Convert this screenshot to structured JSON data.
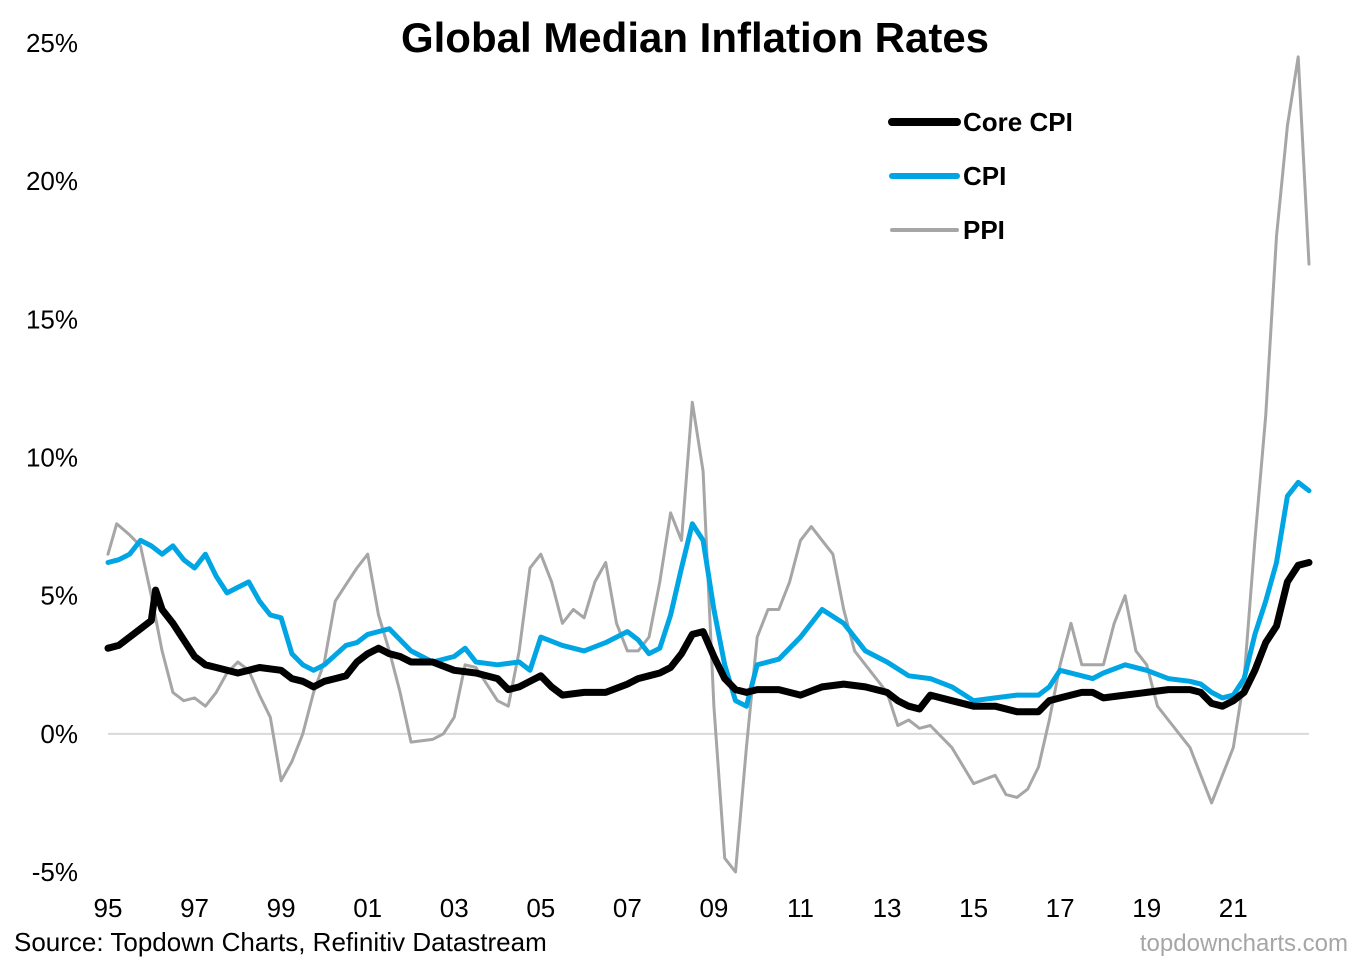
{
  "chart_data": {
    "type": "line",
    "title": "Global Median Inflation Rates",
    "xlabel": "",
    "ylabel": "",
    "x_range": [
      1995,
      2022.75
    ],
    "ylim": [
      -5,
      25
    ],
    "y_ticks": [
      -5,
      0,
      5,
      10,
      15,
      20,
      25
    ],
    "y_tick_labels": [
      "-5%",
      "0%",
      "5%",
      "10%",
      "15%",
      "20%",
      "25%"
    ],
    "x_ticks": [
      1995,
      1997,
      1999,
      2001,
      2003,
      2005,
      2007,
      2009,
      2011,
      2013,
      2015,
      2017,
      2019,
      2021
    ],
    "x_tick_labels": [
      "95",
      "97",
      "99",
      "01",
      "03",
      "05",
      "07",
      "09",
      "11",
      "13",
      "15",
      "17",
      "19",
      "21"
    ],
    "zero_line": true,
    "grid": false,
    "legend_position": "top-right",
    "series": [
      {
        "name": "Core CPI",
        "color": "#000000",
        "width": 7,
        "points": [
          [
            1995.0,
            3.1
          ],
          [
            1995.25,
            3.2
          ],
          [
            1995.5,
            3.5
          ],
          [
            1995.75,
            3.8
          ],
          [
            1996.0,
            4.1
          ],
          [
            1996.1,
            5.2
          ],
          [
            1996.25,
            4.5
          ],
          [
            1996.5,
            4.0
          ],
          [
            1996.75,
            3.4
          ],
          [
            1997.0,
            2.8
          ],
          [
            1997.25,
            2.5
          ],
          [
            1997.5,
            2.4
          ],
          [
            1998.0,
            2.2
          ],
          [
            1998.25,
            2.3
          ],
          [
            1998.5,
            2.4
          ],
          [
            1999.0,
            2.3
          ],
          [
            1999.25,
            2.0
          ],
          [
            1999.5,
            1.9
          ],
          [
            1999.75,
            1.7
          ],
          [
            2000.0,
            1.9
          ],
          [
            2000.25,
            2.0
          ],
          [
            2000.5,
            2.1
          ],
          [
            2000.75,
            2.6
          ],
          [
            2001.0,
            2.9
          ],
          [
            2001.25,
            3.1
          ],
          [
            2001.5,
            2.9
          ],
          [
            2001.75,
            2.8
          ],
          [
            2002.0,
            2.6
          ],
          [
            2002.5,
            2.6
          ],
          [
            2003.0,
            2.3
          ],
          [
            2003.5,
            2.2
          ],
          [
            2004.0,
            2.0
          ],
          [
            2004.25,
            1.6
          ],
          [
            2004.5,
            1.7
          ],
          [
            2004.75,
            1.9
          ],
          [
            2005.0,
            2.1
          ],
          [
            2005.25,
            1.7
          ],
          [
            2005.5,
            1.4
          ],
          [
            2006.0,
            1.5
          ],
          [
            2006.5,
            1.5
          ],
          [
            2007.0,
            1.8
          ],
          [
            2007.25,
            2.0
          ],
          [
            2007.5,
            2.1
          ],
          [
            2007.75,
            2.2
          ],
          [
            2008.0,
            2.4
          ],
          [
            2008.25,
            2.9
          ],
          [
            2008.5,
            3.6
          ],
          [
            2008.75,
            3.7
          ],
          [
            2009.0,
            2.8
          ],
          [
            2009.25,
            2.0
          ],
          [
            2009.5,
            1.6
          ],
          [
            2009.75,
            1.5
          ],
          [
            2010.0,
            1.6
          ],
          [
            2010.5,
            1.6
          ],
          [
            2011.0,
            1.4
          ],
          [
            2011.5,
            1.7
          ],
          [
            2012.0,
            1.8
          ],
          [
            2012.5,
            1.7
          ],
          [
            2013.0,
            1.5
          ],
          [
            2013.25,
            1.2
          ],
          [
            2013.5,
            1.0
          ],
          [
            2013.75,
            0.9
          ],
          [
            2014.0,
            1.4
          ],
          [
            2014.5,
            1.2
          ],
          [
            2015.0,
            1.0
          ],
          [
            2015.5,
            1.0
          ],
          [
            2016.0,
            0.8
          ],
          [
            2016.5,
            0.8
          ],
          [
            2016.75,
            1.2
          ],
          [
            2017.0,
            1.3
          ],
          [
            2017.5,
            1.5
          ],
          [
            2017.75,
            1.5
          ],
          [
            2018.0,
            1.3
          ],
          [
            2018.5,
            1.4
          ],
          [
            2019.0,
            1.5
          ],
          [
            2019.5,
            1.6
          ],
          [
            2020.0,
            1.6
          ],
          [
            2020.25,
            1.5
          ],
          [
            2020.5,
            1.1
          ],
          [
            2020.75,
            1.0
          ],
          [
            2021.0,
            1.2
          ],
          [
            2021.25,
            1.5
          ],
          [
            2021.5,
            2.3
          ],
          [
            2021.75,
            3.3
          ],
          [
            2022.0,
            3.9
          ],
          [
            2022.25,
            5.5
          ],
          [
            2022.5,
            6.1
          ],
          [
            2022.75,
            6.2
          ]
        ]
      },
      {
        "name": "CPI",
        "color": "#00a6e4",
        "width": 5,
        "points": [
          [
            1995.0,
            6.2
          ],
          [
            1995.25,
            6.3
          ],
          [
            1995.5,
            6.5
          ],
          [
            1995.75,
            7.0
          ],
          [
            1996.0,
            6.8
          ],
          [
            1996.25,
            6.5
          ],
          [
            1996.5,
            6.8
          ],
          [
            1996.75,
            6.3
          ],
          [
            1997.0,
            6.0
          ],
          [
            1997.25,
            6.5
          ],
          [
            1997.5,
            5.7
          ],
          [
            1997.75,
            5.1
          ],
          [
            1998.0,
            5.3
          ],
          [
            1998.25,
            5.5
          ],
          [
            1998.5,
            4.8
          ],
          [
            1998.75,
            4.3
          ],
          [
            1999.0,
            4.2
          ],
          [
            1999.25,
            2.9
          ],
          [
            1999.5,
            2.5
          ],
          [
            1999.75,
            2.3
          ],
          [
            2000.0,
            2.5
          ],
          [
            2000.5,
            3.2
          ],
          [
            2000.75,
            3.3
          ],
          [
            2001.0,
            3.6
          ],
          [
            2001.5,
            3.8
          ],
          [
            2002.0,
            3.0
          ],
          [
            2002.5,
            2.6
          ],
          [
            2003.0,
            2.8
          ],
          [
            2003.25,
            3.1
          ],
          [
            2003.5,
            2.6
          ],
          [
            2004.0,
            2.5
          ],
          [
            2004.5,
            2.6
          ],
          [
            2004.75,
            2.3
          ],
          [
            2005.0,
            3.5
          ],
          [
            2005.5,
            3.2
          ],
          [
            2006.0,
            3.0
          ],
          [
            2006.5,
            3.3
          ],
          [
            2007.0,
            3.7
          ],
          [
            2007.25,
            3.4
          ],
          [
            2007.5,
            2.9
          ],
          [
            2007.75,
            3.1
          ],
          [
            2008.0,
            4.3
          ],
          [
            2008.25,
            6.0
          ],
          [
            2008.5,
            7.6
          ],
          [
            2008.75,
            7.0
          ],
          [
            2009.0,
            4.5
          ],
          [
            2009.25,
            2.5
          ],
          [
            2009.5,
            1.2
          ],
          [
            2009.75,
            1.0
          ],
          [
            2010.0,
            2.5
          ],
          [
            2010.5,
            2.7
          ],
          [
            2011.0,
            3.5
          ],
          [
            2011.5,
            4.5
          ],
          [
            2012.0,
            4.0
          ],
          [
            2012.5,
            3.0
          ],
          [
            2013.0,
            2.6
          ],
          [
            2013.5,
            2.1
          ],
          [
            2014.0,
            2.0
          ],
          [
            2014.5,
            1.7
          ],
          [
            2015.0,
            1.2
          ],
          [
            2015.5,
            1.3
          ],
          [
            2016.0,
            1.4
          ],
          [
            2016.5,
            1.4
          ],
          [
            2016.75,
            1.7
          ],
          [
            2017.0,
            2.3
          ],
          [
            2017.5,
            2.1
          ],
          [
            2017.75,
            2.0
          ],
          [
            2018.0,
            2.2
          ],
          [
            2018.5,
            2.5
          ],
          [
            2019.0,
            2.3
          ],
          [
            2019.5,
            2.0
          ],
          [
            2020.0,
            1.9
          ],
          [
            2020.25,
            1.8
          ],
          [
            2020.5,
            1.5
          ],
          [
            2020.75,
            1.3
          ],
          [
            2021.0,
            1.4
          ],
          [
            2021.25,
            2.0
          ],
          [
            2021.5,
            3.6
          ],
          [
            2021.75,
            4.8
          ],
          [
            2022.0,
            6.2
          ],
          [
            2022.25,
            8.6
          ],
          [
            2022.5,
            9.1
          ],
          [
            2022.75,
            8.8
          ]
        ]
      },
      {
        "name": "PPI",
        "color": "#a6a6a6",
        "width": 3,
        "points": [
          [
            1995.0,
            6.5
          ],
          [
            1995.2,
            7.6
          ],
          [
            1995.5,
            7.2
          ],
          [
            1995.75,
            6.8
          ],
          [
            1996.0,
            5.0
          ],
          [
            1996.25,
            3.0
          ],
          [
            1996.5,
            1.5
          ],
          [
            1996.75,
            1.2
          ],
          [
            1997.0,
            1.3
          ],
          [
            1997.25,
            1.0
          ],
          [
            1997.5,
            1.5
          ],
          [
            1997.75,
            2.2
          ],
          [
            1998.0,
            2.6
          ],
          [
            1998.25,
            2.3
          ],
          [
            1998.5,
            1.4
          ],
          [
            1998.75,
            0.6
          ],
          [
            1999.0,
            -1.7
          ],
          [
            1999.25,
            -1.0
          ],
          [
            1999.5,
            0.0
          ],
          [
            1999.75,
            1.5
          ],
          [
            2000.0,
            2.6
          ],
          [
            2000.25,
            4.8
          ],
          [
            2000.5,
            5.4
          ],
          [
            2000.75,
            6.0
          ],
          [
            2001.0,
            6.5
          ],
          [
            2001.25,
            4.3
          ],
          [
            2001.5,
            3.0
          ],
          [
            2001.75,
            1.5
          ],
          [
            2002.0,
            -0.3
          ],
          [
            2002.5,
            -0.2
          ],
          [
            2002.75,
            0.0
          ],
          [
            2003.0,
            0.6
          ],
          [
            2003.25,
            2.5
          ],
          [
            2003.5,
            2.4
          ],
          [
            2003.75,
            1.8
          ],
          [
            2004.0,
            1.2
          ],
          [
            2004.25,
            1.0
          ],
          [
            2004.5,
            3.0
          ],
          [
            2004.75,
            6.0
          ],
          [
            2005.0,
            6.5
          ],
          [
            2005.25,
            5.5
          ],
          [
            2005.5,
            4.0
          ],
          [
            2005.75,
            4.5
          ],
          [
            2006.0,
            4.2
          ],
          [
            2006.25,
            5.5
          ],
          [
            2006.5,
            6.2
          ],
          [
            2006.75,
            4.0
          ],
          [
            2007.0,
            3.0
          ],
          [
            2007.25,
            3.0
          ],
          [
            2007.5,
            3.5
          ],
          [
            2007.75,
            5.5
          ],
          [
            2008.0,
            8.0
          ],
          [
            2008.25,
            7.0
          ],
          [
            2008.5,
            12.0
          ],
          [
            2008.75,
            9.5
          ],
          [
            2009.0,
            1.0
          ],
          [
            2009.25,
            -4.5
          ],
          [
            2009.5,
            -5.0
          ],
          [
            2009.75,
            -0.5
          ],
          [
            2010.0,
            3.5
          ],
          [
            2010.25,
            4.5
          ],
          [
            2010.5,
            4.5
          ],
          [
            2010.75,
            5.5
          ],
          [
            2011.0,
            7.0
          ],
          [
            2011.25,
            7.5
          ],
          [
            2011.5,
            7.0
          ],
          [
            2011.75,
            6.5
          ],
          [
            2012.0,
            4.5
          ],
          [
            2012.25,
            3.0
          ],
          [
            2012.5,
            2.5
          ],
          [
            2012.75,
            2.0
          ],
          [
            2013.0,
            1.5
          ],
          [
            2013.25,
            0.3
          ],
          [
            2013.5,
            0.5
          ],
          [
            2013.75,
            0.2
          ],
          [
            2014.0,
            0.3
          ],
          [
            2014.5,
            -0.5
          ],
          [
            2015.0,
            -1.8
          ],
          [
            2015.5,
            -1.5
          ],
          [
            2015.75,
            -2.2
          ],
          [
            2016.0,
            -2.3
          ],
          [
            2016.25,
            -2.0
          ],
          [
            2016.5,
            -1.2
          ],
          [
            2016.75,
            0.5
          ],
          [
            2017.0,
            2.5
          ],
          [
            2017.25,
            4.0
          ],
          [
            2017.5,
            2.5
          ],
          [
            2017.75,
            2.5
          ],
          [
            2018.0,
            2.5
          ],
          [
            2018.25,
            4.0
          ],
          [
            2018.5,
            5.0
          ],
          [
            2018.75,
            3.0
          ],
          [
            2019.0,
            2.5
          ],
          [
            2019.25,
            1.0
          ],
          [
            2019.5,
            0.5
          ],
          [
            2019.75,
            0.0
          ],
          [
            2020.0,
            -0.5
          ],
          [
            2020.25,
            -1.5
          ],
          [
            2020.5,
            -2.5
          ],
          [
            2020.75,
            -1.5
          ],
          [
            2021.0,
            -0.5
          ],
          [
            2021.25,
            2.0
          ],
          [
            2021.5,
            7.0
          ],
          [
            2021.75,
            11.5
          ],
          [
            2022.0,
            18.0
          ],
          [
            2022.25,
            22.0
          ],
          [
            2022.5,
            24.5
          ],
          [
            2022.75,
            17.0
          ]
        ]
      }
    ],
    "source": "Source: Topdown Charts, Refinitiv Datastream",
    "watermark": "topdowncharts.com"
  }
}
